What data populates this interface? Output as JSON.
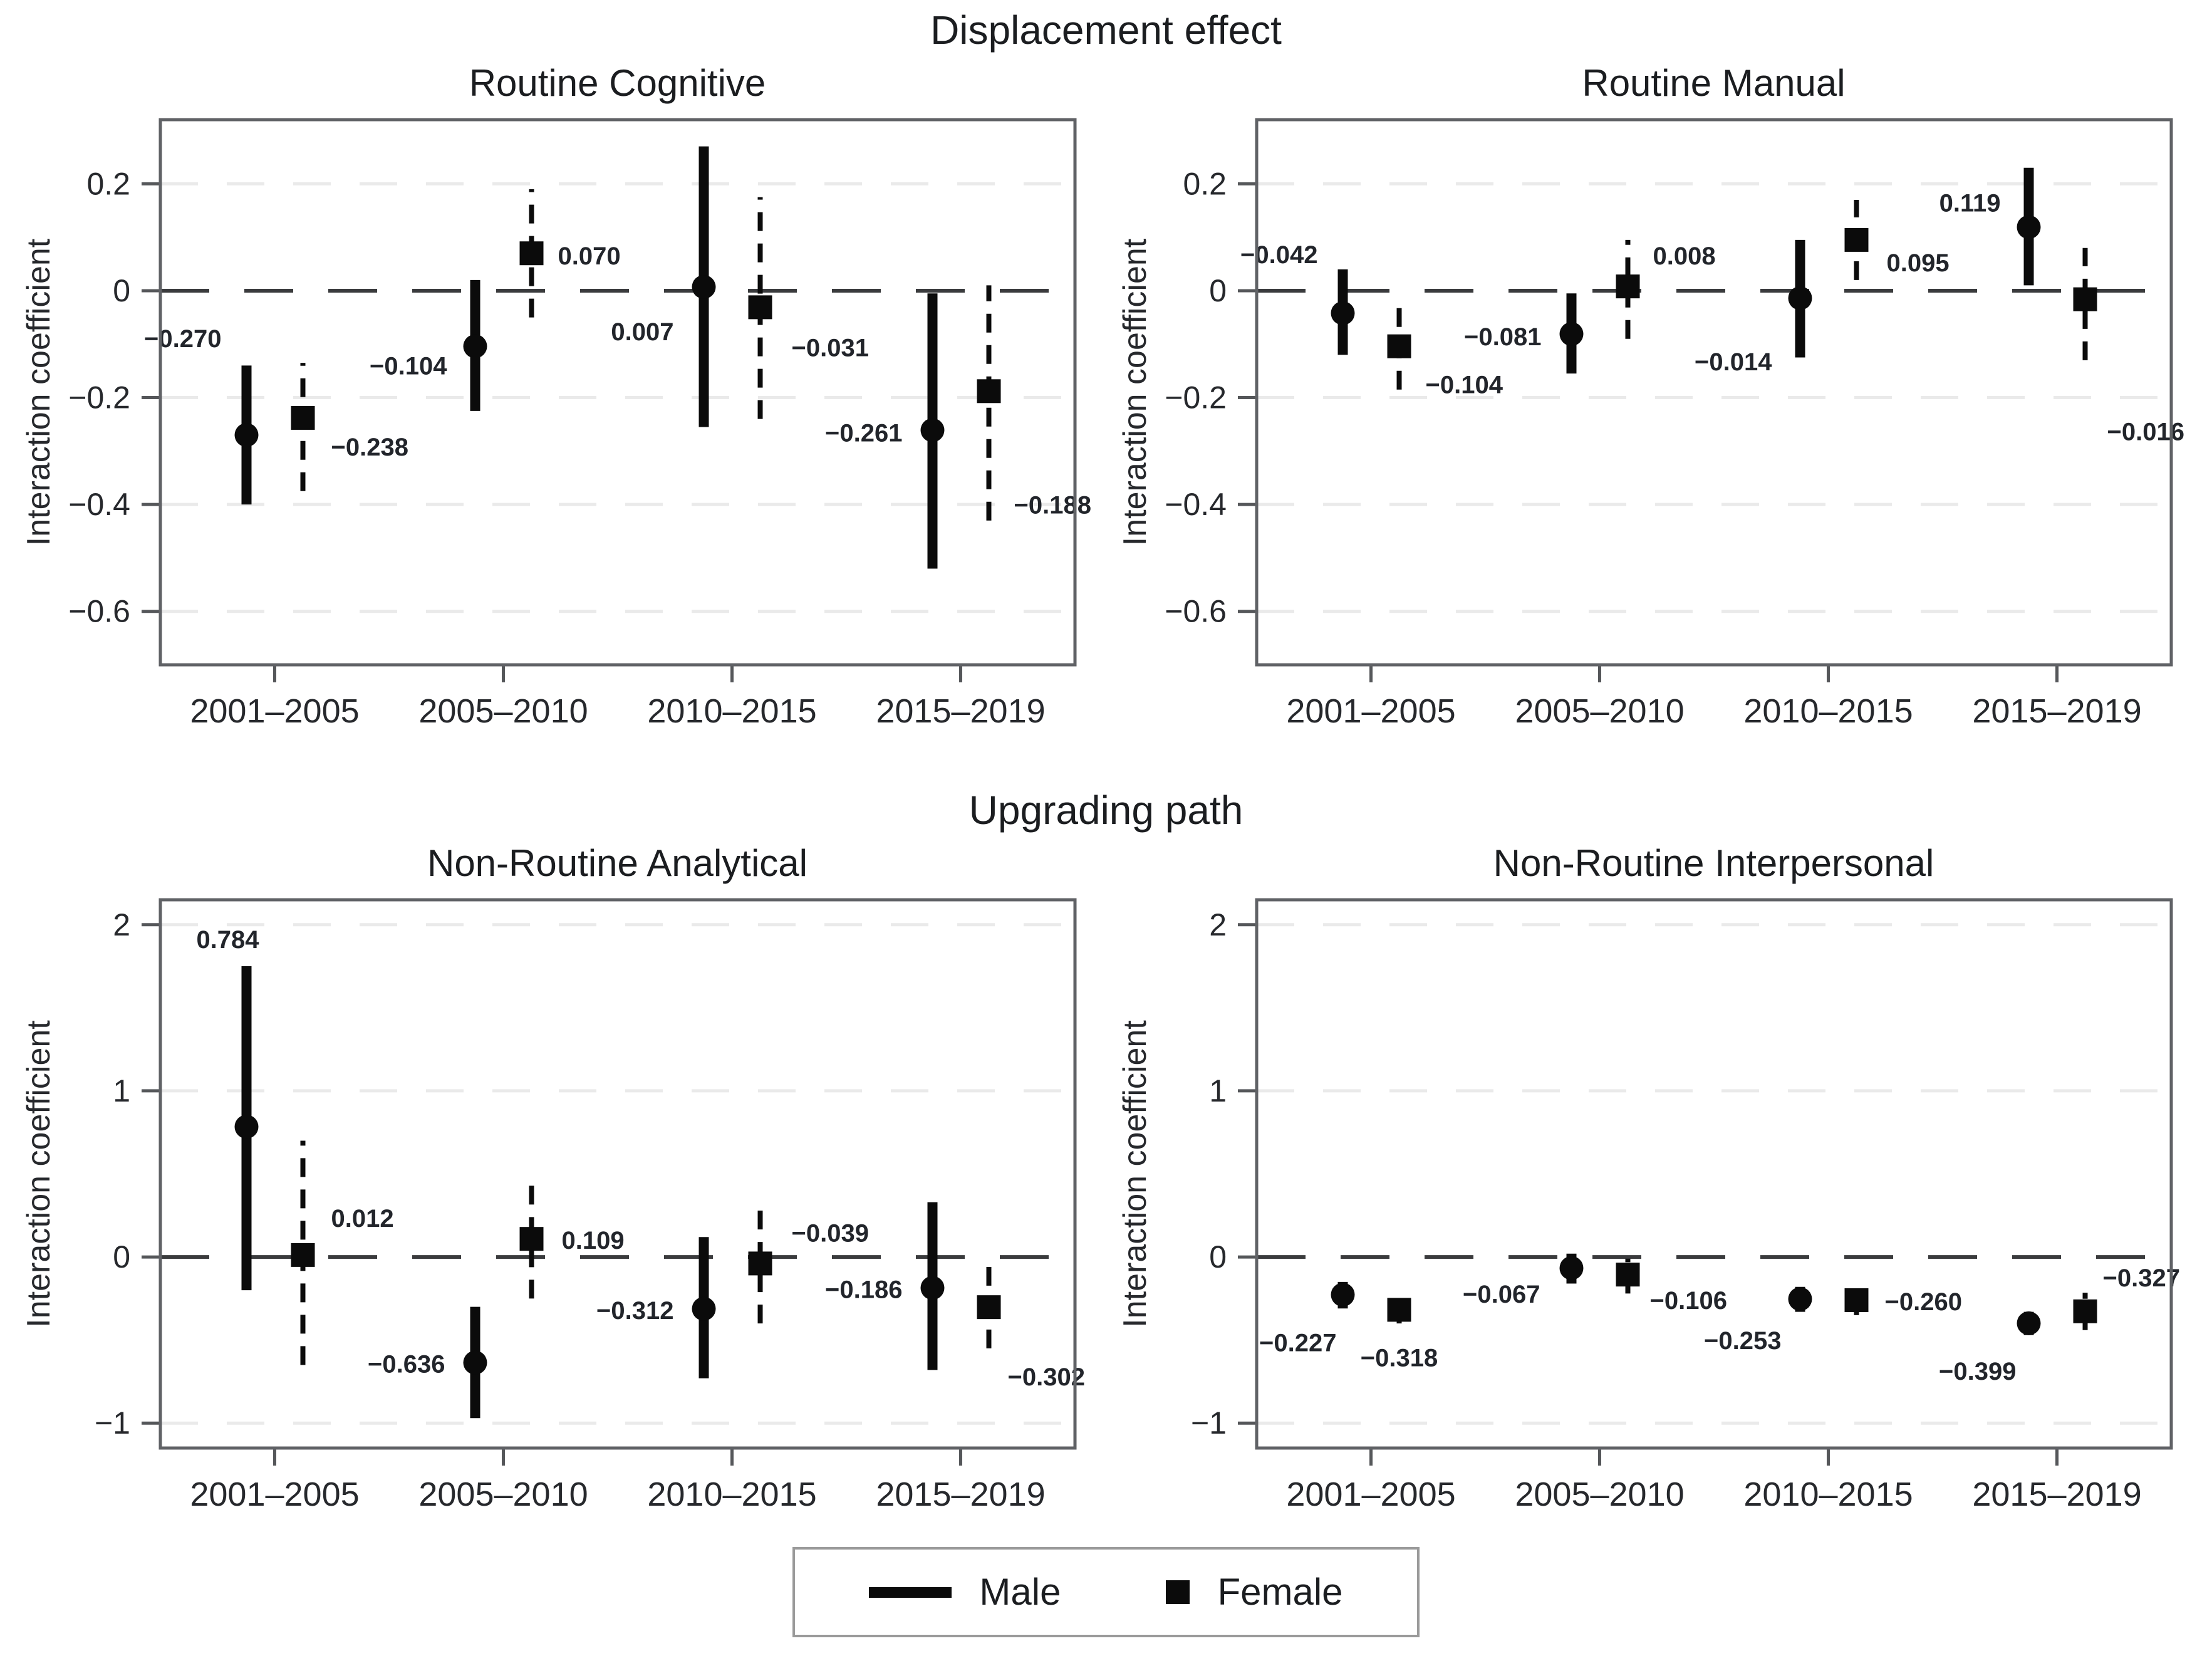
{
  "titles": {
    "top": "Displacement effect",
    "bottom": "Upgrading path"
  },
  "ylabel": "Interaction coefficient",
  "categories": [
    "2001–2005",
    "2005–2010",
    "2010–2015",
    "2015–2019"
  ],
  "legend": {
    "male": "Male",
    "female": "Female"
  },
  "colors": {
    "marker": "#0b0b0b",
    "grid": "#eaeaea",
    "zero_line": "#3a3b3d",
    "border": "#606266",
    "text": "#26282c"
  },
  "chart_data": [
    {
      "type": "scatter",
      "title": "Routine Cognitive",
      "row": "top",
      "xlabel": "",
      "ylabel": "Interaction coefficient",
      "ylim": [
        0.32,
        -0.7
      ],
      "grid": true,
      "yticks": [
        {
          "value": 0.2,
          "label": "0.2"
        },
        {
          "value": 0,
          "label": "0"
        },
        {
          "value": -0.2,
          "label": "−0.2"
        },
        {
          "value": -0.4,
          "label": "−0.4"
        },
        {
          "value": -0.6,
          "label": "−0.6"
        }
      ],
      "series": {
        "male": [
          {
            "value": -0.27,
            "label": "−0.270",
            "lo": -0.4,
            "hi": -0.14,
            "dx": -40,
            "dy": -140,
            "anchor": "end"
          },
          {
            "value": -0.104,
            "label": "−0.104",
            "lo": -0.225,
            "hi": 0.02,
            "dx": -45,
            "dy": 45,
            "anchor": "end"
          },
          {
            "value": 0.007,
            "label": "0.007",
            "lo": -0.255,
            "hi": 0.27,
            "dx": -48,
            "dy": 85,
            "anchor": "end"
          },
          {
            "value": -0.261,
            "label": "−0.261",
            "lo": -0.52,
            "hi": -0.005,
            "dx": -48,
            "dy": 18,
            "anchor": "end"
          }
        ],
        "female": [
          {
            "value": -0.238,
            "label": "−0.238",
            "lo": -0.375,
            "hi": -0.135,
            "dx": 45,
            "dy": 60,
            "anchor": "start"
          },
          {
            "value": 0.07,
            "label": "0.070",
            "lo": -0.05,
            "hi": 0.19,
            "dx": 42,
            "dy": 18,
            "anchor": "start"
          },
          {
            "value": -0.031,
            "label": "−0.031",
            "lo": -0.24,
            "hi": 0.175,
            "dx": 50,
            "dy": 78,
            "anchor": "start"
          },
          {
            "value": -0.188,
            "label": "−0.188",
            "lo": -0.43,
            "hi": 0.01,
            "dx": 40,
            "dy": 195,
            "anchor": "start"
          }
        ]
      }
    },
    {
      "type": "scatter",
      "title": "Routine Manual",
      "row": "top",
      "xlabel": "",
      "ylabel": "Interaction coefficient",
      "ylim": [
        0.32,
        -0.7
      ],
      "grid": true,
      "yticks": [
        {
          "value": 0.2,
          "label": "0.2"
        },
        {
          "value": 0,
          "label": "0"
        },
        {
          "value": -0.2,
          "label": "−0.2"
        },
        {
          "value": -0.4,
          "label": "−0.4"
        },
        {
          "value": -0.6,
          "label": "−0.6"
        }
      ],
      "series": {
        "male": [
          {
            "value": -0.042,
            "label": "−0.042",
            "lo": -0.12,
            "hi": 0.04,
            "dx": -40,
            "dy": -80,
            "anchor": "end"
          },
          {
            "value": -0.081,
            "label": "−0.081",
            "lo": -0.155,
            "hi": -0.005,
            "dx": -48,
            "dy": 18,
            "anchor": "end"
          },
          {
            "value": -0.014,
            "label": "−0.014",
            "lo": -0.125,
            "hi": 0.095,
            "dx": -45,
            "dy": 115,
            "anchor": "end"
          },
          {
            "value": 0.119,
            "label": "0.119",
            "lo": 0.01,
            "hi": 0.23,
            "dx": -45,
            "dy": -25,
            "anchor": "end"
          }
        ],
        "female": [
          {
            "value": -0.104,
            "label": "−0.104",
            "lo": -0.185,
            "hi": -0.03,
            "dx": 42,
            "dy": 75,
            "anchor": "start"
          },
          {
            "value": 0.008,
            "label": "0.008",
            "lo": -0.09,
            "hi": 0.095,
            "dx": 40,
            "dy": -35,
            "anchor": "start"
          },
          {
            "value": 0.095,
            "label": "0.095",
            "lo": 0.02,
            "hi": 0.17,
            "dx": 48,
            "dy": 50,
            "anchor": "start"
          },
          {
            "value": -0.016,
            "label": "−0.016",
            "lo": -0.13,
            "hi": 0.08,
            "dx": 35,
            "dy": 225,
            "anchor": "start"
          }
        ]
      }
    },
    {
      "type": "scatter",
      "title": "Non-Routine Analytical",
      "row": "bottom",
      "xlabel": "",
      "ylabel": "Interaction coefficient",
      "ylim": [
        2.15,
        -1.15
      ],
      "grid": true,
      "yticks": [
        {
          "value": 2,
          "label": "2"
        },
        {
          "value": 1,
          "label": "1"
        },
        {
          "value": 0,
          "label": "0"
        },
        {
          "value": -1,
          "label": "−1"
        }
      ],
      "series": {
        "male": [
          {
            "value": 0.784,
            "label": "0.784",
            "lo": -0.2,
            "hi": 1.75,
            "dx": -30,
            "dy": -285,
            "anchor": "middle"
          },
          {
            "value": -0.636,
            "label": "−0.636",
            "lo": -0.97,
            "hi": -0.3,
            "dx": -48,
            "dy": 16,
            "anchor": "end"
          },
          {
            "value": -0.312,
            "label": "−0.312",
            "lo": -0.73,
            "hi": 0.12,
            "dx": -48,
            "dy": 16,
            "anchor": "end"
          },
          {
            "value": -0.186,
            "label": "−0.186",
            "lo": -0.68,
            "hi": 0.33,
            "dx": -48,
            "dy": 16,
            "anchor": "end"
          }
        ],
        "female": [
          {
            "value": 0.012,
            "label": "0.012",
            "lo": -0.65,
            "hi": 0.7,
            "dx": 45,
            "dy": -45,
            "anchor": "start"
          },
          {
            "value": 0.109,
            "label": "0.109",
            "lo": -0.25,
            "hi": 0.45,
            "dx": 48,
            "dy": 16,
            "anchor": "start"
          },
          {
            "value": -0.039,
            "label": "−0.039",
            "lo": -0.4,
            "hi": 0.3,
            "dx": 50,
            "dy": -35,
            "anchor": "start"
          },
          {
            "value": -0.302,
            "label": "−0.302",
            "lo": -0.55,
            "hi": -0.06,
            "dx": 30,
            "dy": 125,
            "anchor": "start"
          }
        ]
      }
    },
    {
      "type": "scatter",
      "title": "Non-Routine Interpersonal",
      "row": "bottom",
      "xlabel": "",
      "ylabel": "Interaction coefficient",
      "ylim": [
        2.15,
        -1.15
      ],
      "grid": true,
      "yticks": [
        {
          "value": 2,
          "label": "2"
        },
        {
          "value": 1,
          "label": "1"
        },
        {
          "value": 0,
          "label": "0"
        },
        {
          "value": -1,
          "label": "−1"
        }
      ],
      "series": {
        "male": [
          {
            "value": -0.227,
            "label": "−0.227",
            "lo": -0.31,
            "hi": -0.15,
            "dx": -10,
            "dy": 90,
            "anchor": "end"
          },
          {
            "value": -0.067,
            "label": "−0.067",
            "lo": -0.16,
            "hi": 0.02,
            "dx": -50,
            "dy": 55,
            "anchor": "end"
          },
          {
            "value": -0.253,
            "label": "−0.253",
            "lo": -0.33,
            "hi": -0.18,
            "dx": -30,
            "dy": 80,
            "anchor": "end"
          },
          {
            "value": -0.399,
            "label": "−0.399",
            "lo": -0.47,
            "hi": -0.33,
            "dx": -20,
            "dy": 90,
            "anchor": "end"
          }
        ],
        "female": [
          {
            "value": -0.318,
            "label": "−0.318",
            "lo": -0.4,
            "hi": -0.24,
            "dx": 0,
            "dy": 90,
            "anchor": "middle"
          },
          {
            "value": -0.106,
            "label": "−0.106",
            "lo": -0.22,
            "hi": -0.01,
            "dx": 35,
            "dy": 55,
            "anchor": "start"
          },
          {
            "value": -0.26,
            "label": "−0.260",
            "lo": -0.35,
            "hi": -0.17,
            "dx": 45,
            "dy": 16,
            "anchor": "start"
          },
          {
            "value": -0.327,
            "label": "−0.327",
            "lo": -0.44,
            "hi": -0.215,
            "dx": 28,
            "dy": -40,
            "anchor": "start"
          }
        ]
      }
    }
  ]
}
